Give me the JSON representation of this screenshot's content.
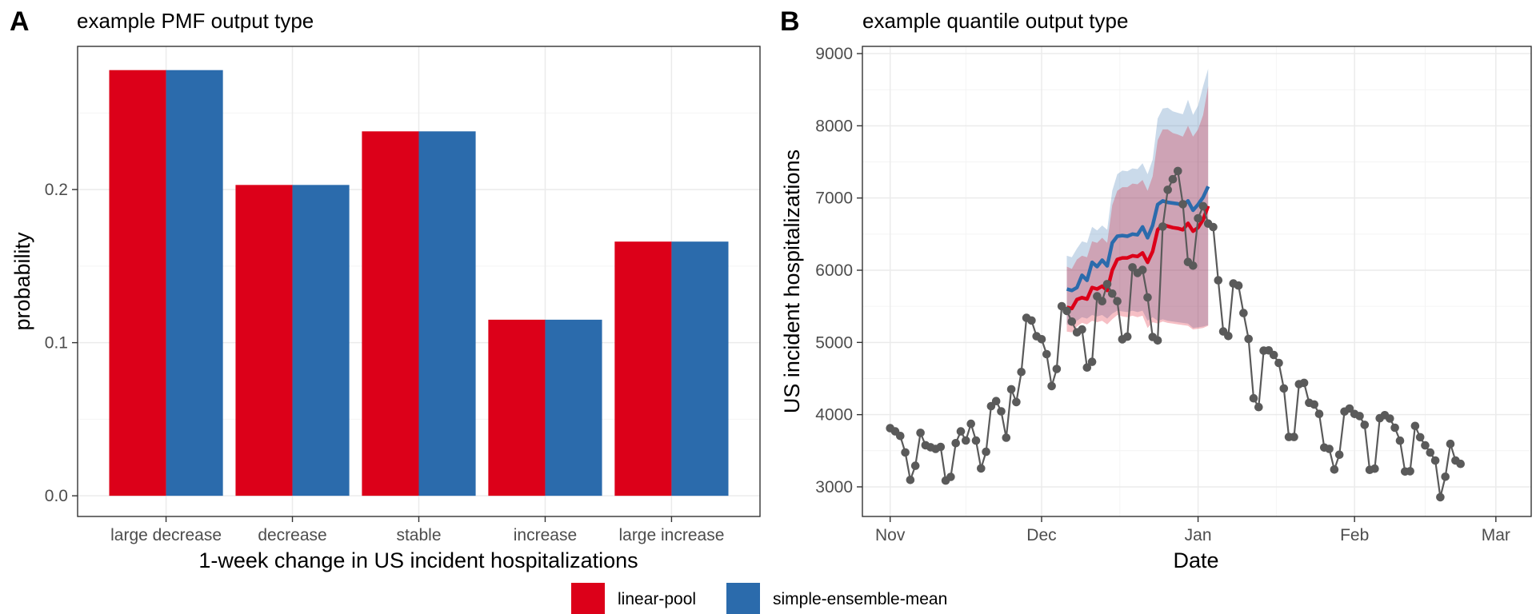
{
  "colors": {
    "linear_pool": "#DC0019",
    "simple_ensemble_mean": "#2B6BAC",
    "observed": "#5a5a5a"
  },
  "legend": {
    "items": [
      "linear-pool",
      "simple-ensemble-mean"
    ]
  },
  "chart_data": [
    {
      "panel": "A",
      "type": "bar",
      "title": "example PMF output type",
      "xlabel": "1-week change in US incident hospitalizations",
      "ylabel": "probability",
      "categories": [
        "large decrease",
        "decrease",
        "stable",
        "increase",
        "large increase"
      ],
      "series": [
        {
          "name": "linear-pool",
          "values": [
            0.278,
            0.203,
            0.238,
            0.115,
            0.166
          ]
        },
        {
          "name": "simple-ensemble-mean",
          "values": [
            0.278,
            0.203,
            0.238,
            0.115,
            0.166
          ]
        }
      ],
      "ylim": [
        -0.0135,
        0.2935
      ],
      "yticks": [
        0.0,
        0.1,
        0.2
      ],
      "ytick_labels": [
        "0.0",
        "0.1",
        "0.2"
      ],
      "grid": true
    },
    {
      "panel": "B",
      "type": "line",
      "title": "example quantile output type",
      "xlabel": "Date",
      "ylabel": "US incident hospitalizations",
      "x_unit": "days since Nov 1",
      "xlim": [
        -5.5,
        127
      ],
      "ylim": [
        2590,
        9100
      ],
      "xticks": [
        0,
        30,
        61,
        92,
        120
      ],
      "xtick_labels": [
        "Nov",
        "Dec",
        "Jan",
        "Feb",
        "Mar"
      ],
      "yticks": [
        3000,
        4000,
        5000,
        6000,
        7000,
        8000,
        9000
      ],
      "ytick_labels": [
        "3000",
        "4000",
        "5000",
        "6000",
        "7000",
        "8000",
        "9000"
      ],
      "grid": true,
      "observed": {
        "name": "observed",
        "values": [
          3812,
          3768,
          3705,
          3477,
          3096,
          3292,
          3748,
          3576,
          3549,
          3526,
          3553,
          3087,
          3138,
          3605,
          3768,
          3642,
          3873,
          3641,
          3255,
          3486,
          4118,
          4188,
          4046,
          3681,
          4352,
          4174,
          4591,
          5340,
          5304,
          5086,
          5044,
          4838,
          4396,
          4633,
          5502,
          5436,
          5288,
          5140,
          5180,
          4653,
          4731,
          5639,
          5571,
          5807,
          5676,
          5572,
          5043,
          5080,
          6040,
          5962,
          6004,
          5624,
          5076,
          5028,
          6604,
          7114,
          7260,
          7374,
          6915,
          6114,
          6063,
          6720,
          6887,
          6646,
          6598,
          5861,
          5152,
          5089,
          5816,
          5787,
          5407,
          5049,
          4226,
          4105,
          4886,
          4890,
          4826,
          4716,
          4362,
          3690,
          3691,
          4422,
          4440,
          4164,
          4141,
          4010,
          3544,
          3525,
          3240,
          3445,
          4043,
          4085,
          4009,
          3981,
          3859,
          3236,
          3252,
          3951,
          3993,
          3946,
          3819,
          3640,
          3212,
          3217,
          3843,
          3687,
          3574,
          3475,
          3365,
          2857,
          3140,
          3595,
          3365,
          3318
        ]
      },
      "forecasts": {
        "x_start": 35,
        "linear_pool": {
          "median": [
            5485,
            5470,
            5595,
            5620,
            5600,
            5760,
            5740,
            5780,
            5720,
            6000,
            6150,
            6170,
            6170,
            6200,
            6190,
            6240,
            6110,
            6260,
            6560,
            6630,
            6610,
            6590,
            6580,
            6560,
            6650,
            6540,
            6590,
            6700,
            6890
          ],
          "band_low": [
            5150,
            5140,
            5220,
            5270,
            5250,
            5300,
            5280,
            5300,
            5250,
            5320,
            5380,
            5360,
            5350,
            5370,
            5350,
            5370,
            5200,
            5280,
            5260,
            5290,
            5270,
            5260,
            5250,
            5240,
            5230,
            5180,
            5190,
            5200,
            5230
          ],
          "band_high": [
            6050,
            6020,
            6150,
            6200,
            6180,
            6400,
            6380,
            6450,
            6380,
            6900,
            7100,
            7150,
            7150,
            7200,
            7190,
            7250,
            7100,
            7300,
            7800,
            7950,
            7950,
            7900,
            7880,
            7850,
            8000,
            7850,
            7950,
            8150,
            8550
          ]
        },
        "simple_ensemble_mean": {
          "median": [
            5740,
            5720,
            5760,
            5930,
            5860,
            6110,
            6050,
            6140,
            6060,
            6380,
            6470,
            6480,
            6470,
            6500,
            6490,
            6600,
            6450,
            6620,
            6910,
            6960,
            6940,
            6930,
            6920,
            6900,
            6960,
            6830,
            6910,
            7010,
            7160
          ],
          "band_low": [
            5250,
            5230,
            5300,
            5350,
            5330,
            5380,
            5360,
            5380,
            5330,
            5400,
            5440,
            5430,
            5420,
            5440,
            5420,
            5440,
            5300,
            5350,
            5300,
            5320,
            5300,
            5290,
            5280,
            5270,
            5260,
            5200,
            5210,
            5220,
            5240
          ],
          "band_high": [
            6200,
            6180,
            6300,
            6400,
            6380,
            6600,
            6550,
            6620,
            6560,
            7100,
            7330,
            7380,
            7370,
            7410,
            7400,
            7480,
            7330,
            7530,
            8100,
            8240,
            8250,
            8200,
            8180,
            8160,
            8360,
            8150,
            8280,
            8550,
            8790
          ]
        }
      }
    }
  ]
}
